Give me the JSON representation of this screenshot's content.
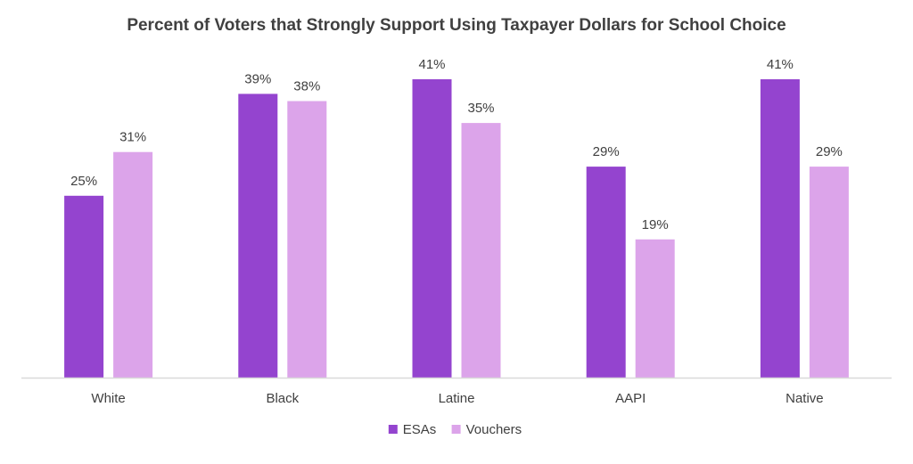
{
  "chart_data": {
    "type": "bar",
    "title": "Percent of Voters that Strongly Support Using Taxpayer Dollars for School Choice",
    "xlabel": "",
    "ylabel": "",
    "ylim": [
      0,
      45
    ],
    "grid": false,
    "legend_position": "bottom",
    "categories": [
      "White",
      "Black",
      "Latine",
      "AAPI",
      "Native"
    ],
    "series": [
      {
        "name": "ESAs",
        "color": "#9444CF",
        "values": [
          25,
          39,
          41,
          29,
          41
        ],
        "labels": [
          "25%",
          "39%",
          "41%",
          "29%",
          "41%"
        ]
      },
      {
        "name": "Vouchers",
        "color": "#DCA4EA",
        "values": [
          31,
          38,
          35,
          19,
          29
        ],
        "labels": [
          "31%",
          "38%",
          "35%",
          "19%",
          "29%"
        ]
      }
    ],
    "axis_color": "#D9D9D9"
  }
}
